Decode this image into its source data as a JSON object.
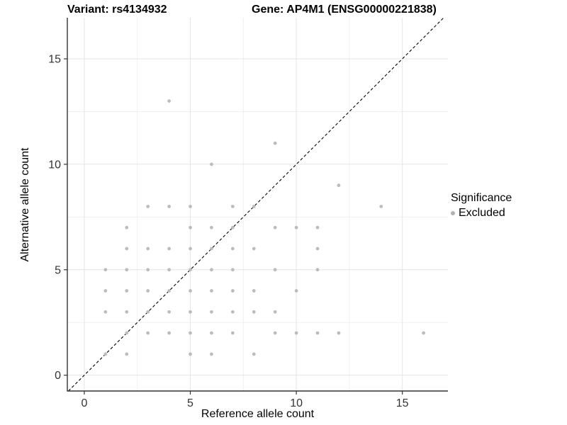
{
  "titles": {
    "variant": "Variant: rs4134932",
    "gene": "Gene: AP4M1 (ENSG00000221838)"
  },
  "legend": {
    "title": "Significance",
    "items": [
      {
        "label": "Excluded",
        "color": "#b3b3b3"
      }
    ]
  },
  "colors": {
    "point": "#bcbcbc",
    "grid_major": "#e4e4e4",
    "grid_minor": "#f0f0f0",
    "axis_line": "#333333",
    "tick_label": "#333333",
    "identity_line": "#000000",
    "background": "#ffffff"
  },
  "chart_data": {
    "type": "scatter",
    "title": "Variant: rs4134932 / Gene: AP4M1 (ENSG00000221838)",
    "xlabel": "Reference allele count",
    "ylabel": "Alternative allele count",
    "xlim": [
      -0.8,
      17.15
    ],
    "ylim": [
      -0.75,
      16.95
    ],
    "x_major_ticks": [
      0,
      5,
      10,
      15
    ],
    "x_minor_ticks": [
      2.5,
      7.5,
      12.5
    ],
    "y_major_ticks": [
      0,
      5,
      10,
      15
    ],
    "y_minor_ticks": [
      2.5,
      7.5,
      12.5
    ],
    "grid": true,
    "legend_position": "right",
    "identity_line": {
      "style": "dashed",
      "equation": "y = x",
      "from": [
        -0.75,
        -0.75
      ],
      "to": [
        16.95,
        16.95
      ]
    },
    "series": [
      {
        "name": "Excluded",
        "color": "#bcbcbc",
        "points": [
          [
            4,
            13
          ],
          [
            9,
            11
          ],
          [
            6,
            10
          ],
          [
            12,
            9
          ],
          [
            3,
            8
          ],
          [
            4,
            8
          ],
          [
            5,
            8
          ],
          [
            7,
            8
          ],
          [
            8,
            8
          ],
          [
            14,
            8
          ],
          [
            2,
            7
          ],
          [
            5,
            7
          ],
          [
            6,
            7
          ],
          [
            7,
            7
          ],
          [
            9,
            7
          ],
          [
            10,
            7
          ],
          [
            11,
            7
          ],
          [
            2,
            6
          ],
          [
            3,
            6
          ],
          [
            4,
            6
          ],
          [
            5,
            6
          ],
          [
            6,
            6
          ],
          [
            7,
            6
          ],
          [
            8,
            6
          ],
          [
            11,
            6
          ],
          [
            1,
            5
          ],
          [
            2,
            5
          ],
          [
            3,
            5
          ],
          [
            4,
            5
          ],
          [
            5,
            5
          ],
          [
            6,
            5
          ],
          [
            7,
            5
          ],
          [
            9,
            5
          ],
          [
            11,
            5
          ],
          [
            1,
            4
          ],
          [
            2,
            4
          ],
          [
            3,
            4
          ],
          [
            4,
            4
          ],
          [
            5,
            4
          ],
          [
            6,
            4
          ],
          [
            7,
            4
          ],
          [
            8,
            4
          ],
          [
            10,
            4
          ],
          [
            1,
            3
          ],
          [
            2,
            3
          ],
          [
            3,
            3
          ],
          [
            4,
            3
          ],
          [
            5,
            3
          ],
          [
            6,
            3
          ],
          [
            7,
            3
          ],
          [
            8,
            3
          ],
          [
            9,
            3
          ],
          [
            2,
            2
          ],
          [
            3,
            2
          ],
          [
            4,
            2
          ],
          [
            5,
            2
          ],
          [
            6,
            2
          ],
          [
            7,
            2
          ],
          [
            9,
            2
          ],
          [
            10,
            2
          ],
          [
            11,
            2
          ],
          [
            12,
            2
          ],
          [
            16,
            2
          ],
          [
            1,
            1
          ],
          [
            2,
            1
          ],
          [
            5,
            1
          ],
          [
            6,
            1
          ],
          [
            8,
            1
          ]
        ]
      }
    ]
  }
}
